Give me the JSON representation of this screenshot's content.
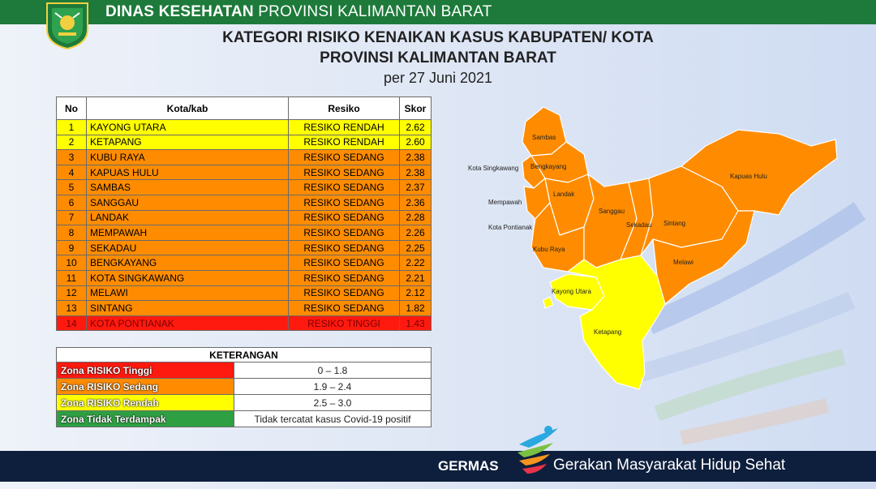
{
  "header": {
    "agency_bold": "DINAS KESEHATAN",
    "agency_rest": "PROVINSI KALIMANTAN BARAT",
    "title_line1": "KATEGORI RISIKO KENAIKAN KASUS KABUPATEN/ KOTA",
    "title_line2": "PROVINSI KALIMANTAN BARAT",
    "date_line": "per 27 Juni 2021"
  },
  "table": {
    "columns": [
      "No",
      "Kota/kab",
      "Resiko",
      "Skor"
    ],
    "rows": [
      {
        "no": "1",
        "name": "KAYONG UTARA",
        "risk": "RESIKO RENDAH",
        "score": "2.62",
        "level": "yellow"
      },
      {
        "no": "2",
        "name": "KETAPANG",
        "risk": "RESIKO RENDAH",
        "score": "2.60",
        "level": "yellow"
      },
      {
        "no": "3",
        "name": "KUBU RAYA",
        "risk": "RESIKO SEDANG",
        "score": "2.38",
        "level": "orange"
      },
      {
        "no": "4",
        "name": "KAPUAS HULU",
        "risk": "RESIKO SEDANG",
        "score": "2.38",
        "level": "orange"
      },
      {
        "no": "5",
        "name": "SAMBAS",
        "risk": "RESIKO SEDANG",
        "score": "2.37",
        "level": "orange"
      },
      {
        "no": "6",
        "name": "SANGGAU",
        "risk": "RESIKO SEDANG",
        "score": "2.36",
        "level": "orange"
      },
      {
        "no": "7",
        "name": "LANDAK",
        "risk": "RESIKO SEDANG",
        "score": "2.28",
        "level": "orange"
      },
      {
        "no": "8",
        "name": "MEMPAWAH",
        "risk": "RESIKO SEDANG",
        "score": "2.26",
        "level": "orange"
      },
      {
        "no": "9",
        "name": "SEKADAU",
        "risk": "RESIKO SEDANG",
        "score": "2.25",
        "level": "orange"
      },
      {
        "no": "10",
        "name": "BENGKAYANG",
        "risk": "RESIKO SEDANG",
        "score": "2.22",
        "level": "orange"
      },
      {
        "no": "11",
        "name": "KOTA SINGKAWANG",
        "risk": "RESIKO SEDANG",
        "score": "2.21",
        "level": "orange"
      },
      {
        "no": "12",
        "name": "MELAWI",
        "risk": "RESIKO SEDANG",
        "score": "2.12",
        "level": "orange"
      },
      {
        "no": "13",
        "name": "SINTANG",
        "risk": "RESIKO SEDANG",
        "score": "1.82",
        "level": "orange"
      },
      {
        "no": "14",
        "name": "KOTA PONTIANAK",
        "risk": "RESIKO TINGGI",
        "score": "1.43",
        "level": "red"
      }
    ]
  },
  "legend": {
    "title": "KETERANGAN",
    "items": [
      {
        "label": "Zona RISIKO Tinggi",
        "range": "0 – 1.8",
        "color": "#ff1a0f"
      },
      {
        "label": "Zona RISIKO Sedang",
        "range": "1.9 – 2.4",
        "color": "#ff8c00"
      },
      {
        "label": "Zona RISIKO Rendah",
        "range": "2.5 – 3.0",
        "color": "#ffff00"
      },
      {
        "label": "Zona Tidak Terdampak",
        "range": "Tidak tercatat kasus Covid-19 positif",
        "color": "#2ea043"
      }
    ]
  },
  "map": {
    "labels": {
      "sambas": "Sambas",
      "kota_singkawang": "Kota Singkawang",
      "bengkayang": "Bengkayang",
      "mempawah": "Mempawah",
      "landak": "Landak",
      "kota_pontianak": "Kota Pontianak",
      "kubu_raya": "Kubu Raya",
      "sanggau": "Sanggau",
      "sekadau": "Sekadau",
      "sintang": "Sintang",
      "kapuas_hulu": "Kapuas Hulu",
      "melawi": "Melawi",
      "kayong_utara": "Kayong Utara",
      "ketapang": "Ketapang"
    },
    "colors": {
      "orange": "#ff8c00",
      "yellow": "#ffff00",
      "red": "#ff1a0f"
    }
  },
  "footer": {
    "brand": "GERMAS",
    "slogan": "Gerakan Masyarakat Hidup Sehat"
  }
}
